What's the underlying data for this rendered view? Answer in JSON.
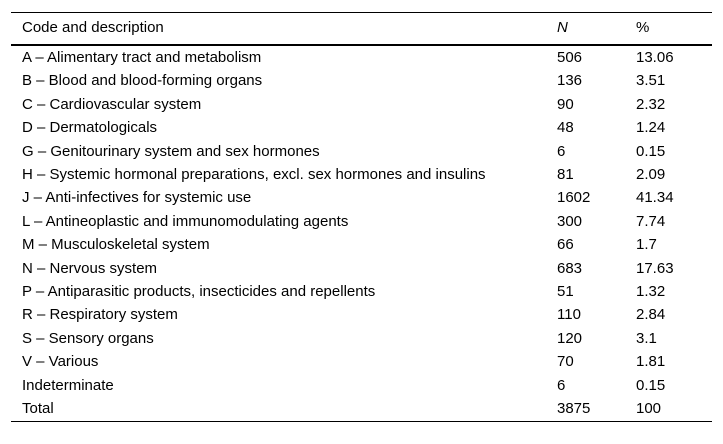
{
  "colors": {
    "background": "#ffffff",
    "text": "#000000",
    "rule": "#000000"
  },
  "table": {
    "headers": {
      "description": "Code and description",
      "n": "N",
      "pct": "%"
    },
    "rows": [
      {
        "description": "A – Alimentary tract and metabolism",
        "n": "506",
        "pct": "13.06"
      },
      {
        "description": "B – Blood and blood-forming organs",
        "n": "136",
        "pct": "3.51"
      },
      {
        "description": "C – Cardiovascular system",
        "n": "90",
        "pct": "2.32"
      },
      {
        "description": "D – Dermatologicals",
        "n": "48",
        "pct": "1.24"
      },
      {
        "description": "G – Genitourinary system and sex hormones",
        "n": "6",
        "pct": "0.15"
      },
      {
        "description": "H – Systemic hormonal preparations, excl. sex hormones and insulins",
        "n": "81",
        "pct": "2.09"
      },
      {
        "description": "J – Anti-infectives for systemic use",
        "n": "1602",
        "pct": "41.34"
      },
      {
        "description": "L – Antineoplastic and immunomodulating agents",
        "n": "300",
        "pct": "7.74"
      },
      {
        "description": "M – Musculoskeletal system",
        "n": "66",
        "pct": "1.7"
      },
      {
        "description": "N – Nervous system",
        "n": "683",
        "pct": "17.63"
      },
      {
        "description": "P – Antiparasitic products, insecticides and repellents",
        "n": "51",
        "pct": "1.32"
      },
      {
        "description": "R – Respiratory system",
        "n": "110",
        "pct": "2.84"
      },
      {
        "description": "S – Sensory organs",
        "n": "120",
        "pct": "3.1"
      },
      {
        "description": "V – Various",
        "n": "70",
        "pct": "1.81"
      },
      {
        "description": "Indeterminate",
        "n": "6",
        "pct": "0.15"
      },
      {
        "description": "Total",
        "n": "3875",
        "pct": "100"
      }
    ]
  }
}
